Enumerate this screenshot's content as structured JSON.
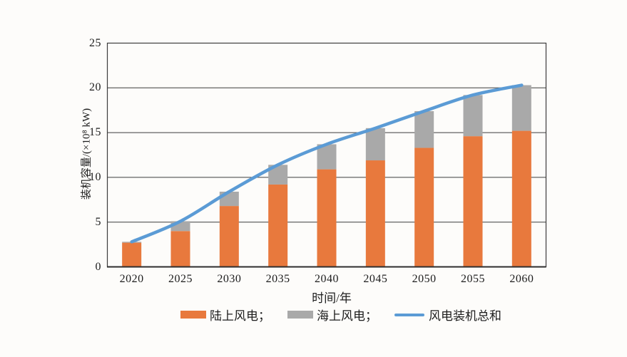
{
  "page": {
    "background": "#fdfcfa",
    "text_color": "#1d1d1d"
  },
  "chart_data": {
    "type": "stacked-bar-with-total-line",
    "title": "",
    "categories": [
      "2020",
      "2025",
      "2030",
      "2035",
      "2040",
      "2045",
      "2050",
      "2055",
      "2060"
    ],
    "series": [
      {
        "name": "陆上风电",
        "render": "bar",
        "stack": true,
        "color": "#E8793D",
        "values": [
          2.7,
          4.0,
          6.8,
          9.2,
          10.9,
          11.9,
          13.3,
          14.6,
          15.2
        ]
      },
      {
        "name": "海上风电",
        "render": "bar",
        "stack": true,
        "color": "#A9A9A9",
        "values": [
          0.1,
          1.1,
          1.6,
          2.2,
          2.8,
          3.6,
          4.1,
          4.6,
          5.1
        ]
      },
      {
        "name": "风电装机总和",
        "render": "line",
        "color": "#5B9BD5",
        "values": [
          2.8,
          5.1,
          8.4,
          11.4,
          13.7,
          15.5,
          17.4,
          19.2,
          20.3
        ]
      }
    ],
    "xlabel": "时间/年",
    "ylabel": "装机容量/(×10⁸ kW)",
    "ylim": [
      0,
      25
    ],
    "yticks": [
      0,
      5,
      10,
      15,
      20,
      25
    ],
    "grid": true,
    "plot_border": true,
    "legend_position": "bottom",
    "axis_color": "#3d3d3d"
  },
  "legend": {
    "onshore": "陆上风电；",
    "offshore": "海上风电；",
    "total": "风电装机总和"
  }
}
